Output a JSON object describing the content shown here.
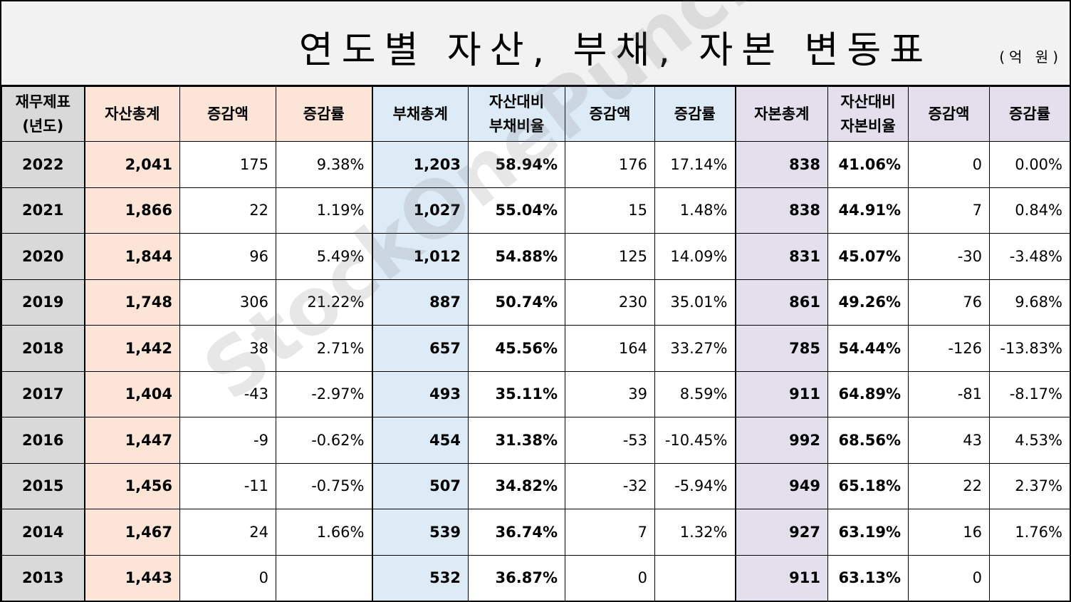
{
  "title": "연도별 자산, 부채, 자본 변동표",
  "unit": "(억 원)",
  "watermark": "StockOnePunch",
  "headers": {
    "year": "재무제표\n(년도)",
    "total_assets": "자산총계",
    "asset_change": "증감액",
    "asset_rate": "증감률",
    "total_debt": "부채총계",
    "debt_ratio": "자산대비\n부채비율",
    "debt_change": "증감액",
    "debt_rate": "증감률",
    "total_equity": "자본총계",
    "equity_ratio": "자산대비\n자본비율",
    "equity_change": "증감액",
    "equity_rate": "증감률"
  },
  "rows": [
    [
      "2022",
      "2,041",
      "175",
      "9.38%",
      "1,203",
      "58.94%",
      "176",
      "17.14%",
      "838",
      "41.06%",
      "0",
      "0.00%"
    ],
    [
      "2021",
      "1,866",
      "22",
      "1.19%",
      "1,027",
      "55.04%",
      "15",
      "1.48%",
      "838",
      "44.91%",
      "7",
      "0.84%"
    ],
    [
      "2020",
      "1,844",
      "96",
      "5.49%",
      "1,012",
      "54.88%",
      "125",
      "14.09%",
      "831",
      "45.07%",
      "-30",
      "-3.48%"
    ],
    [
      "2019",
      "1,748",
      "306",
      "21.22%",
      "887",
      "50.74%",
      "230",
      "35.01%",
      "861",
      "49.26%",
      "76",
      "9.68%"
    ],
    [
      "2018",
      "1,442",
      "38",
      "2.71%",
      "657",
      "45.56%",
      "164",
      "33.27%",
      "785",
      "54.44%",
      "-126",
      "-13.83%"
    ],
    [
      "2017",
      "1,404",
      "-43",
      "-2.97%",
      "493",
      "35.11%",
      "39",
      "8.59%",
      "911",
      "64.89%",
      "-81",
      "-8.17%"
    ],
    [
      "2016",
      "1,447",
      "-9",
      "-0.62%",
      "454",
      "31.38%",
      "-53",
      "-10.45%",
      "992",
      "68.56%",
      "43",
      "4.53%"
    ],
    [
      "2015",
      "1,456",
      "-11",
      "-0.75%",
      "507",
      "34.82%",
      "-32",
      "-5.94%",
      "949",
      "65.18%",
      "22",
      "2.37%"
    ],
    [
      "2014",
      "1,467",
      "24",
      "1.66%",
      "539",
      "36.74%",
      "7",
      "1.32%",
      "927",
      "63.19%",
      "16",
      "1.76%"
    ],
    [
      "2013",
      "1,443",
      "0",
      "",
      "532",
      "36.87%",
      "0",
      "",
      "911",
      "63.13%",
      "0",
      ""
    ]
  ],
  "colors": {
    "year_bg": "#d9d9d9",
    "asset_bg": "#fce4d6",
    "debt_bg": "#ddebf7",
    "equity_bg": "#e4dfec",
    "negative_text": "#ff0000"
  }
}
